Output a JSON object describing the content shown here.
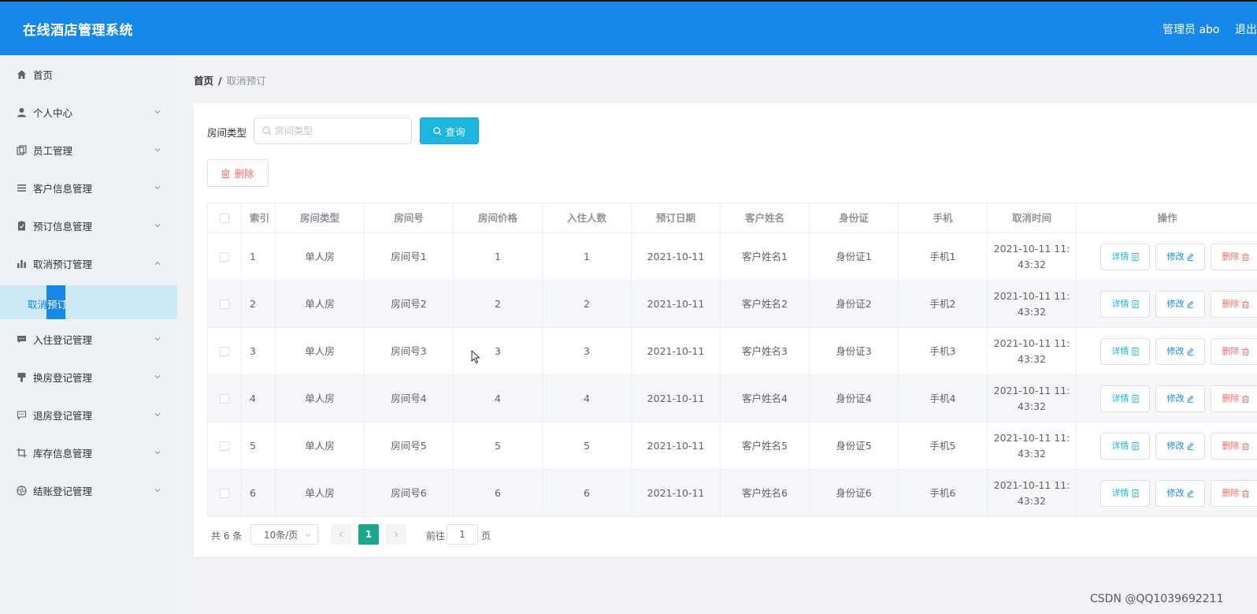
{
  "app": {
    "title": "在线酒店管理系统",
    "admin_label": "管理员 abo",
    "logout_label": "退出"
  },
  "sidebar": {
    "items": [
      {
        "label": "首页",
        "icon": "home-icon"
      },
      {
        "label": "个人中心",
        "icon": "user-icon"
      },
      {
        "label": "员工管理",
        "icon": "copy-icon"
      },
      {
        "label": "客户信息管理",
        "icon": "menu-icon"
      },
      {
        "label": "预订信息管理",
        "icon": "clipboard-icon"
      },
      {
        "label": "取消预订管理",
        "icon": "bar-chart-icon"
      },
      {
        "label": "入住登记管理",
        "icon": "chat-icon"
      },
      {
        "label": "换房登记管理",
        "icon": "brush-icon"
      },
      {
        "label": "退房登记管理",
        "icon": "message-icon"
      },
      {
        "label": "库存信息管理",
        "icon": "crop-icon"
      },
      {
        "label": "结账登记管理",
        "icon": "aperture-icon"
      }
    ],
    "active_sub_label": "取消预订"
  },
  "breadcrumb": {
    "home": "首页",
    "separator": "/",
    "current": "取消预订"
  },
  "filter": {
    "label": "房间类型",
    "placeholder": "房间类型",
    "query_label": "查询"
  },
  "toolbar": {
    "delete_label": "删除"
  },
  "table": {
    "headers": [
      "索引",
      "房间类型",
      "房间号",
      "房间价格",
      "入住人数",
      "预订日期",
      "客户姓名",
      "身份证",
      "手机",
      "取消时间",
      "操作"
    ],
    "rows": [
      {
        "index": "1",
        "room_type": "单人房",
        "room_no": "房间号1",
        "price": "1",
        "guests": "1",
        "date": "2021-10-11",
        "customer": "客户姓名1",
        "id_card": "身份证1",
        "phone": "手机1",
        "cancel_time_1": "2021-10-11 11:",
        "cancel_time_2": "43:32"
      },
      {
        "index": "2",
        "room_type": "单人房",
        "room_no": "房间号2",
        "price": "2",
        "guests": "2",
        "date": "2021-10-11",
        "customer": "客户姓名2",
        "id_card": "身份证2",
        "phone": "手机2",
        "cancel_time_1": "2021-10-11 11:",
        "cancel_time_2": "43:32"
      },
      {
        "index": "3",
        "room_type": "单人房",
        "room_no": "房间号3",
        "price": "3",
        "guests": "3",
        "date": "2021-10-11",
        "customer": "客户姓名3",
        "id_card": "身份证3",
        "phone": "手机3",
        "cancel_time_1": "2021-10-11 11:",
        "cancel_time_2": "43:32"
      },
      {
        "index": "4",
        "room_type": "单人房",
        "room_no": "房间号4",
        "price": "4",
        "guests": "4",
        "date": "2021-10-11",
        "customer": "客户姓名4",
        "id_card": "身份证4",
        "phone": "手机4",
        "cancel_time_1": "2021-10-11 11:",
        "cancel_time_2": "43:32"
      },
      {
        "index": "5",
        "room_type": "单人房",
        "room_no": "房间号5",
        "price": "5",
        "guests": "5",
        "date": "2021-10-11",
        "customer": "客户姓名5",
        "id_card": "身份证5",
        "phone": "手机5",
        "cancel_time_1": "2021-10-11 11:",
        "cancel_time_2": "43:32"
      },
      {
        "index": "6",
        "room_type": "单人房",
        "room_no": "房间号6",
        "price": "6",
        "guests": "6",
        "date": "2021-10-11",
        "customer": "客户姓名6",
        "id_card": "身份证6",
        "phone": "手机6",
        "cancel_time_1": "2021-10-11 11:",
        "cancel_time_2": "43:32"
      }
    ],
    "actions": {
      "detail": "详情",
      "edit": "修改",
      "delete": "删除"
    }
  },
  "pagination": {
    "total": "共 6 条",
    "page_size": "10条/页",
    "current_page": "1",
    "goto_label": "前往",
    "goto_value": "1",
    "goto_suffix": "页"
  },
  "watermark": "CSDN @QQ1039692211",
  "colors": {
    "topbar": "#1787e8",
    "accent": "#1bb5df",
    "danger": "#f56c6c",
    "active_page": "#1aa88a"
  }
}
